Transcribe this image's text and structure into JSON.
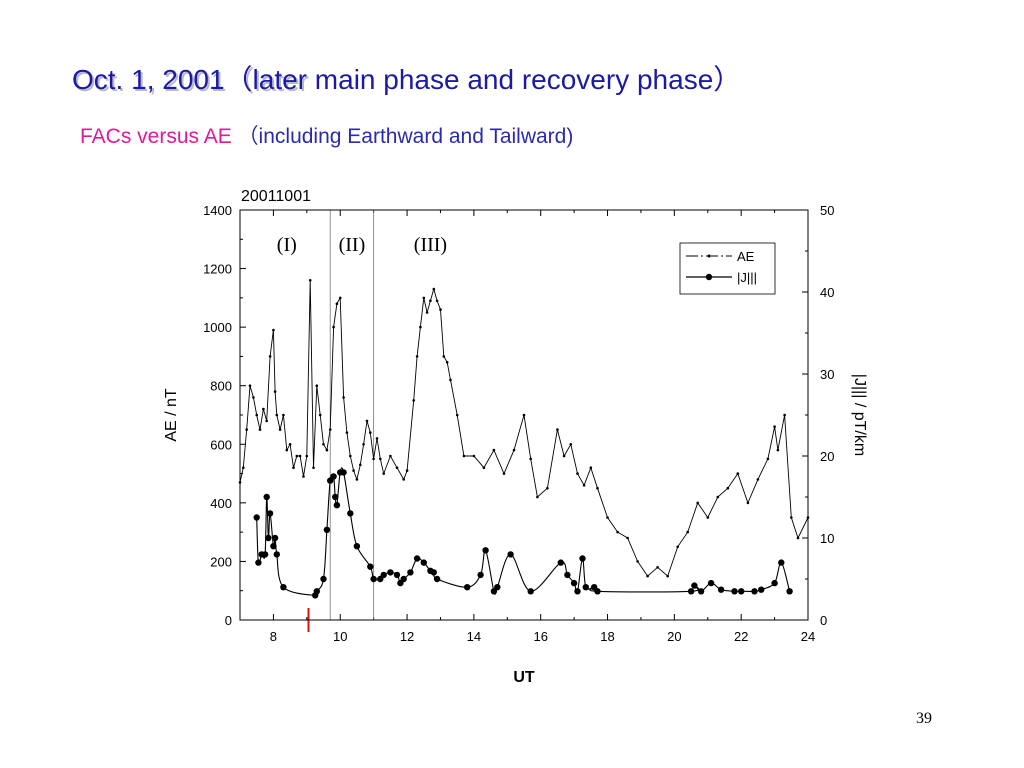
{
  "slide": {
    "title_main": "Oct. 1, 2001（later",
    "title_rest": " main phase and recovery phase）",
    "subtitle_pink": "FACs versus AE ",
    "subtitle_blue": "（including Earthward and Tailward)",
    "page_number": "39"
  },
  "chart_data": {
    "type": "line",
    "title": "20011001",
    "xlabel": "UT",
    "ylabel_left": "AE / nT",
    "ylabel_right": "|J||| / pT/km",
    "xlim": [
      7,
      24
    ],
    "ylim_left": [
      0,
      1400
    ],
    "ylim_right": [
      0,
      50
    ],
    "x_ticks": [
      8,
      10,
      12,
      14,
      16,
      18,
      20,
      22,
      24
    ],
    "y_ticks_left": [
      0,
      200,
      400,
      600,
      800,
      1000,
      1200,
      1400
    ],
    "y_ticks_right": [
      0,
      10,
      20,
      30,
      40,
      50
    ],
    "phase_lines": [
      9.7,
      11.0
    ],
    "phase_labels": [
      {
        "text": "(I)",
        "x": 8.4
      },
      {
        "text": "(II)",
        "x": 10.35
      },
      {
        "text": "(III)",
        "x": 12.7
      }
    ],
    "event_marker_x": 9.05,
    "event_marker_color": "#e01010",
    "legend_position": "top-right",
    "series": [
      {
        "name": "AE",
        "axis": "left",
        "x": [
          7.0,
          7.1,
          7.2,
          7.3,
          7.4,
          7.5,
          7.6,
          7.7,
          7.8,
          7.9,
          8.0,
          8.05,
          8.1,
          8.2,
          8.3,
          8.4,
          8.5,
          8.6,
          8.7,
          8.8,
          8.9,
          9.0,
          9.1,
          9.2,
          9.3,
          9.4,
          9.5,
          9.6,
          9.7,
          9.8,
          9.9,
          10.0,
          10.1,
          10.2,
          10.3,
          10.4,
          10.5,
          10.6,
          10.7,
          10.8,
          10.9,
          11.0,
          11.1,
          11.2,
          11.3,
          11.5,
          11.7,
          11.9,
          12.0,
          12.2,
          12.3,
          12.4,
          12.5,
          12.6,
          12.7,
          12.8,
          12.9,
          13.0,
          13.1,
          13.2,
          13.3,
          13.5,
          13.7,
          14.0,
          14.3,
          14.6,
          14.9,
          15.2,
          15.5,
          15.7,
          15.9,
          16.2,
          16.5,
          16.7,
          16.9,
          17.1,
          17.3,
          17.5,
          17.7,
          18.0,
          18.3,
          18.6,
          18.9,
          19.2,
          19.5,
          19.8,
          20.1,
          20.4,
          20.7,
          21.0,
          21.3,
          21.6,
          21.9,
          22.2,
          22.5,
          22.8,
          23.0,
          23.1,
          23.3,
          23.5,
          23.7,
          24.0
        ],
        "values": [
          470,
          520,
          650,
          800,
          760,
          700,
          650,
          720,
          680,
          900,
          990,
          780,
          700,
          650,
          700,
          580,
          600,
          520,
          560,
          560,
          490,
          560,
          1160,
          520,
          800,
          700,
          600,
          580,
          650,
          1000,
          1080,
          1100,
          760,
          640,
          560,
          510,
          480,
          530,
          600,
          680,
          640,
          550,
          620,
          550,
          500,
          560,
          520,
          480,
          510,
          750,
          900,
          1000,
          1100,
          1050,
          1090,
          1130,
          1090,
          1060,
          900,
          880,
          820,
          700,
          560,
          560,
          520,
          580,
          500,
          580,
          700,
          550,
          420,
          450,
          650,
          560,
          600,
          500,
          460,
          520,
          450,
          350,
          300,
          280,
          200,
          150,
          180,
          150,
          250,
          300,
          400,
          350,
          420,
          450,
          500,
          400,
          480,
          550,
          660,
          580,
          700,
          350,
          280,
          350
        ]
      },
      {
        "name": "|J|||",
        "axis": "right",
        "x": [
          7.5,
          7.55,
          7.65,
          7.75,
          7.8,
          7.85,
          7.9,
          8.0,
          8.05,
          8.1,
          8.3,
          9.25,
          9.3,
          9.5,
          9.6,
          9.7,
          9.8,
          9.85,
          9.9,
          10.0,
          10.1,
          10.3,
          10.5,
          10.9,
          11.0,
          11.2,
          11.3,
          11.5,
          11.7,
          11.8,
          11.9,
          12.1,
          12.3,
          12.5,
          12.7,
          12.8,
          12.9,
          13.8,
          14.2,
          14.35,
          14.6,
          14.7,
          15.1,
          15.7,
          16.6,
          16.8,
          17.0,
          17.1,
          17.25,
          17.35,
          17.6,
          17.7,
          20.5,
          20.6,
          20.8,
          21.1,
          21.4,
          21.8,
          22.0,
          22.4,
          22.6,
          23.0,
          23.2,
          23.45
        ],
        "values": [
          12.5,
          7,
          8,
          8,
          15,
          10,
          13,
          9,
          10,
          8,
          4,
          3,
          3.5,
          5,
          11,
          17,
          17.5,
          15,
          14,
          18,
          18,
          13,
          9,
          6.5,
          5,
          5,
          5.5,
          5.8,
          5.5,
          4.5,
          5,
          5.8,
          7.5,
          7,
          6,
          5.8,
          5,
          4,
          5.5,
          8.5,
          3.5,
          4,
          8,
          3.5,
          7,
          5.5,
          4.5,
          3.5,
          7.5,
          4,
          4,
          3.5,
          3.5,
          4.2,
          3.5,
          4.5,
          3.7,
          3.5,
          3.5,
          3.5,
          3.7,
          4.5,
          7,
          3.5
        ]
      }
    ]
  }
}
